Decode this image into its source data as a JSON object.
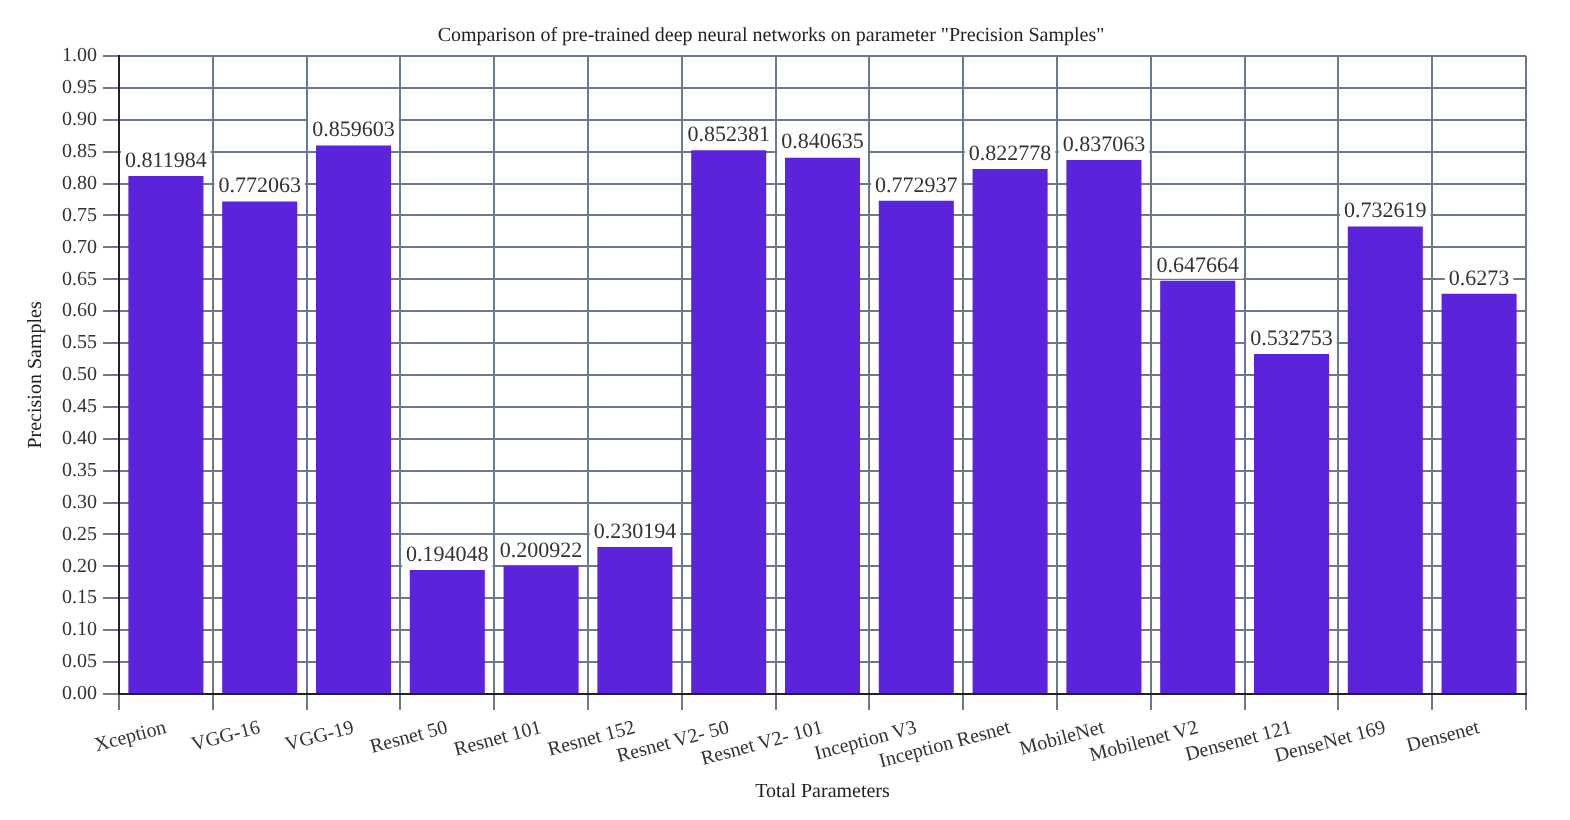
{
  "chart_data": {
    "type": "bar",
    "title": "Comparison of pre-trained deep neural networks on parameter \"Precision Samples\"",
    "xlabel": "Total Parameters",
    "ylabel": "Precision Samples",
    "categories": [
      "Xception",
      "VGG-16",
      "VGG-19",
      "Resnet 50",
      "Resnet 101",
      "Resnet 152",
      "Resnet V2- 50",
      "Resnet V2- 101",
      "Inception V3",
      "Inception Resnet",
      "MobileNet",
      "Mobilenet V2",
      "Densenet 121",
      "DenseNet 169",
      "Densenet"
    ],
    "values": [
      0.811984,
      0.772063,
      0.859603,
      0.194048,
      0.200922,
      0.230194,
      0.852381,
      0.840635,
      0.772937,
      0.822778,
      0.837063,
      0.647664,
      0.532753,
      0.732619,
      0.6273
    ],
    "color": "#5b24dc",
    "ylim": [
      0,
      1
    ],
    "yticks": [
      "0.00",
      "0.05",
      "0.10",
      "0.15",
      "0.20",
      "0.25",
      "0.30",
      "0.35",
      "0.40",
      "0.45",
      "0.50",
      "0.55",
      "0.60",
      "0.65",
      "0.70",
      "0.75",
      "0.80",
      "0.85",
      "0.90",
      "0.95",
      "1.00"
    ],
    "grid": true,
    "data_labels": true
  }
}
